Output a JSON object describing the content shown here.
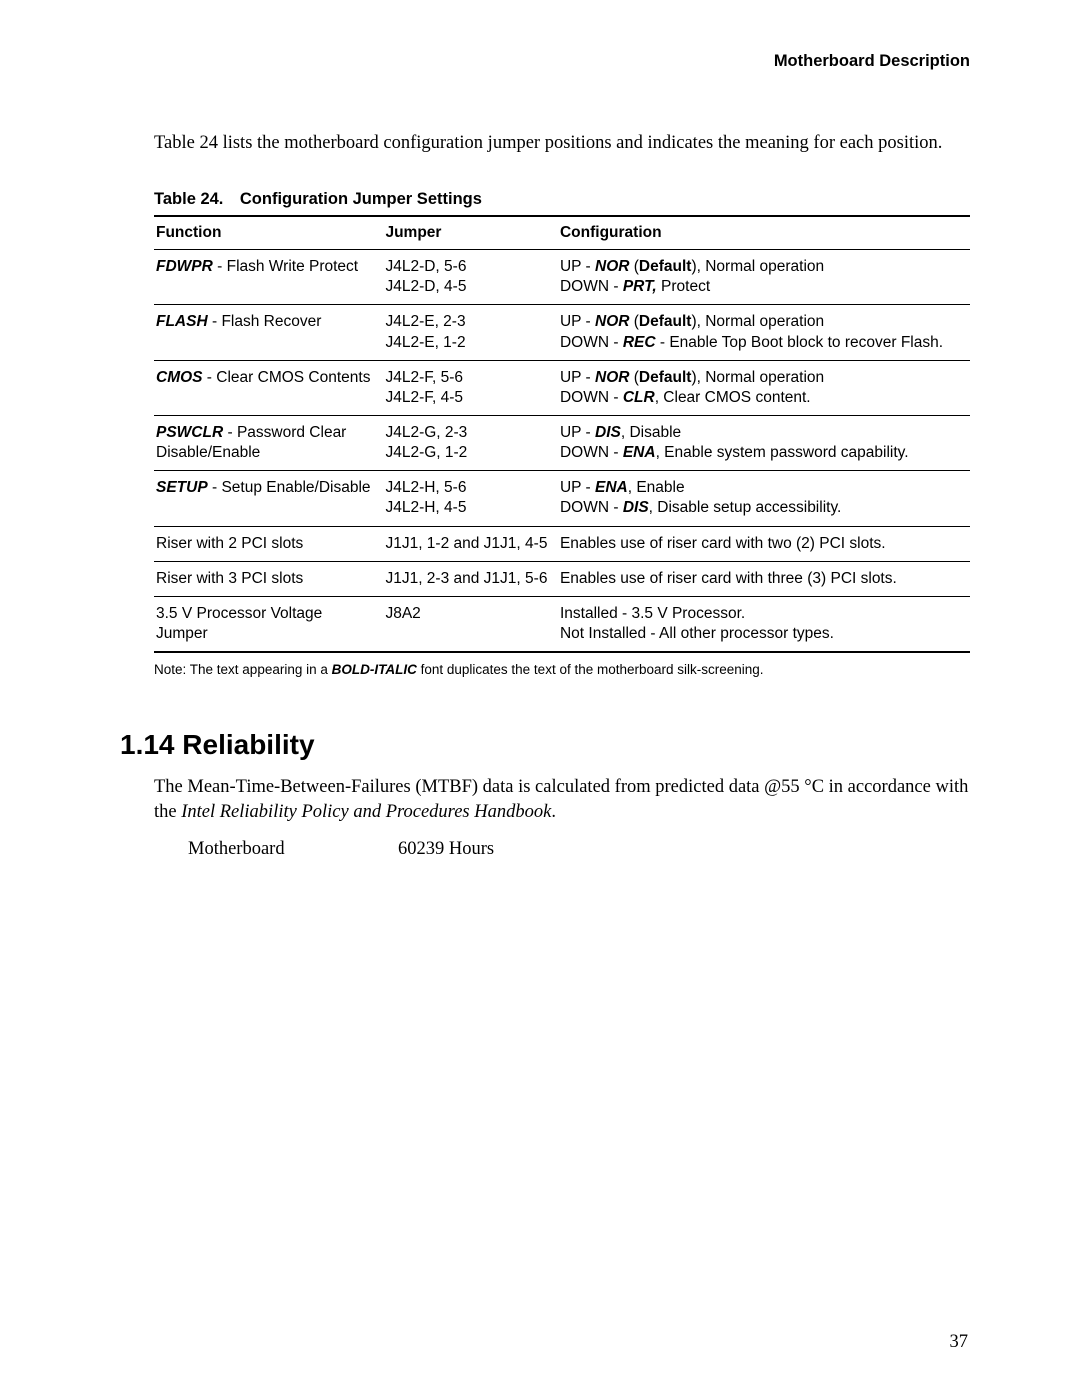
{
  "header": "Motherboard Description",
  "intro": "Table 24 lists the motherboard configuration jumper positions and indicates the meaning for each position.",
  "table_caption": "Table 24. Configuration Jumper Settings",
  "columns": {
    "c1": "Function",
    "c2": "Jumper",
    "c3": "Configuration"
  },
  "rows": [
    {
      "func_bold": "FDWPR",
      "func_rest": " - Flash Write Protect",
      "jumper": "J4L2-D, 5-6\nJ4L2-D, 4-5",
      "conf": [
        {
          "pre": "UP - ",
          "bi": "NOR",
          "mid": " (",
          "bold": "Default",
          "post": "), Normal operation"
        },
        {
          "pre": "DOWN - ",
          "bi": "PRT,",
          "post": " Protect"
        }
      ]
    },
    {
      "func_bold": "FLASH",
      "func_rest": " - Flash Recover",
      "jumper": "J4L2-E, 2-3\nJ4L2-E, 1-2",
      "conf": [
        {
          "pre": "UP - ",
          "bi": "NOR",
          "mid": " (",
          "bold": "Default",
          "post": "), Normal operation"
        },
        {
          "pre": "DOWN - ",
          "bi": "REC",
          "post": " - Enable Top Boot block to recover Flash."
        }
      ]
    },
    {
      "func_bold": "CMOS",
      "func_rest": " - Clear CMOS Contents",
      "jumper": "J4L2-F, 5-6\nJ4L2-F, 4-5",
      "conf": [
        {
          "pre": "UP - ",
          "bi": "NOR",
          "mid": " (",
          "bold": "Default",
          "post": "), Normal operation"
        },
        {
          "pre": "DOWN - ",
          "bi": "CLR",
          "post": ", Clear CMOS content."
        }
      ]
    },
    {
      "func_bold": "PSWCLR",
      "func_rest": " - Password Clear Disable/Enable",
      "jumper": "J4L2-G, 2-3\nJ4L2-G, 1-2",
      "conf": [
        {
          "pre": "UP - ",
          "bi": "DIS",
          "post": ", Disable"
        },
        {
          "pre": "DOWN - ",
          "bi": "ENA",
          "post": ", Enable system password capability."
        }
      ]
    },
    {
      "func_bold": "SETUP",
      "func_rest": " - Setup Enable/Disable",
      "jumper": "J4L2-H, 5-6\nJ4L2-H, 4-5",
      "conf": [
        {
          "pre": "UP - ",
          "bi": "ENA",
          "post": ", Enable"
        },
        {
          "pre": "DOWN - ",
          "bi": "DIS",
          "post": ", Disable setup accessibility."
        }
      ]
    },
    {
      "func_rest": "Riser with 2 PCI slots",
      "jumper": "J1J1, 1-2 and J1J1, 4-5",
      "conf": [
        {
          "post": "Enables use of riser card with two (2) PCI slots."
        }
      ]
    },
    {
      "func_rest": "Riser with 3 PCI slots",
      "jumper": "J1J1, 2-3 and J1J1, 5-6",
      "conf": [
        {
          "post": "Enables use of riser card with three (3) PCI slots."
        }
      ]
    },
    {
      "func_rest": "3.5 V Processor Voltage Jumper",
      "jumper": "J8A2",
      "conf": [
        {
          "post": "Installed - 3.5 V Processor."
        },
        {
          "post": "Not Installed - All other processor types."
        }
      ]
    }
  ],
  "note_pre": "Note:  The text appearing in a ",
  "note_bi": "BOLD-ITALIC",
  "note_post": " font duplicates the text of the motherboard silk-screening.",
  "section_title": "1.14  Reliability",
  "reliability_pre": "The Mean-Time-Between-Failures (MTBF) data is calculated from predicted data @55 °C in accordance with the ",
  "reliability_italic": "Intel Reliability Policy and Procedures Handbook",
  "reliability_post": ".",
  "mtbf_label": "Motherboard",
  "mtbf_value": "60239 Hours",
  "page_number": "37"
}
